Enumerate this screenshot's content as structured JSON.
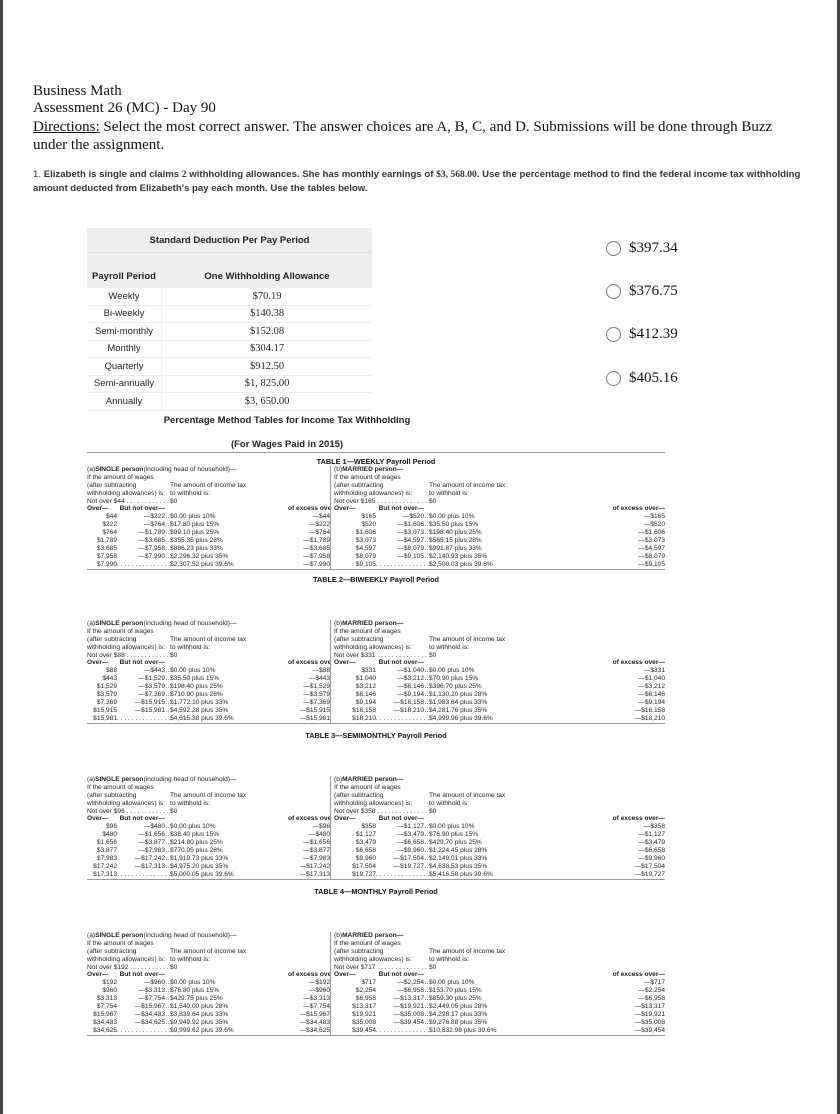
{
  "header": {
    "course": "Business Math",
    "assessment": "Assessment 26 (MC) - Day 90"
  },
  "directions": {
    "label": "Directions:",
    "text": " Select the most correct answer. The answer choices are A, B, C, and D. Submissions will be done through Buzz under the assignment."
  },
  "question": {
    "number": "1.",
    "text_a": "Elizabeth is single and claims ",
    "allowances": "2",
    "text_b": " withholding allowances. She has monthly earnings of ",
    "earnings": "$3, 568.00",
    "text_c": ". Use the percentage method to find the federal income tax withholding amount deducted from Elizabeth's pay each month. Use the tables below."
  },
  "choices": [
    "$397.34",
    "$376.75",
    "$412.39",
    "$405.16"
  ],
  "std_deduction": {
    "title": "Standard Deduction Per Pay Period",
    "col1": "Payroll Period",
    "col2": "One Withholding Allowance",
    "rows": [
      [
        "Weekly",
        "$70.19"
      ],
      [
        "Bi-weekly",
        "$140.38"
      ],
      [
        "Semi-monthly",
        "$152.08"
      ],
      [
        "Monthly",
        "$304.17"
      ],
      [
        "Quarterly",
        "$912.50"
      ],
      [
        "Semi-annually",
        "$1, 825.00"
      ],
      [
        "Annually",
        "$3, 650.00"
      ]
    ]
  },
  "pct_title": "Percentage Method Tables for Income Tax Withholding",
  "pct_subtitle": "(For Wages Paid in 2015)",
  "labels": {
    "single_prefix": "(a) ",
    "single_bold": "SINGLE person",
    "single_suffix": " (including head of household)—",
    "married_prefix": "(b) ",
    "married_bold": "MARRIED person—",
    "if_amount": "If the amount of wages",
    "after": "(after subtracting",
    "withholding": "withholding allowances) is:",
    "amount_tax": "The amount of income tax",
    "to_withhold": "to withhold is:",
    "zero": "$0",
    "over": "Over—",
    "but_not_over": "But not over—",
    "excess": "of excess over—"
  },
  "tables": [
    {
      "title": "TABLE 1—WEEKLY Payroll Period",
      "single": {
        "not_over": "Not over $44",
        "rows": [
          [
            "$44",
            "—$222",
            "$0.00 plus 10%",
            "—$44"
          ],
          [
            "$222",
            "—$764",
            "$17.80 plus 15%",
            "—$222"
          ],
          [
            "$764",
            "—$1,789",
            "$99.10 plus 25%",
            "—$764"
          ],
          [
            "$1,789",
            "—$3,685",
            "$355.35 plus 28%",
            "—$1,789"
          ],
          [
            "$3,685",
            "—$7,958",
            "$886.23 plus 33%",
            "—$3,685"
          ],
          [
            "$7,958",
            "—$7,990",
            "$2,296.32 plus 35%",
            "—$7,958"
          ],
          [
            "$7,990",
            "",
            "$2,307.52 plus 39.6%",
            "—$7,990"
          ]
        ]
      },
      "married": {
        "not_over": "Not over $165",
        "rows": [
          [
            "$165",
            "—$520",
            "$0.00 plus 10%",
            "—$165"
          ],
          [
            "$520",
            "—$1,606",
            "$35.50 plus 15%",
            "—$520"
          ],
          [
            "$1,606",
            "—$3,073",
            "$198.40 plus 25%",
            "—$1,606"
          ],
          [
            "$3,073",
            "—$4,597",
            "$565.15 plus 28%",
            "—$3,073"
          ],
          [
            "$4,597",
            "—$8,079",
            "$991.87 plus 33%",
            "—$4,597"
          ],
          [
            "$8,079",
            "—$9,105",
            "$2,140.93 plus 35%",
            "—$8,079"
          ],
          [
            "$9,105",
            "",
            "$2,500.03 plus 39.6%",
            "—$9,105"
          ]
        ]
      }
    },
    {
      "title": "TABLE 2—BIWEEKLY Payroll Period",
      "single": {
        "not_over": "Not over $88",
        "rows": [
          [
            "$88",
            "—$443",
            "$0.00 plus 10%",
            "—$88"
          ],
          [
            "$443",
            "—$1,529",
            "$35.50 plus 15%",
            "—$443"
          ],
          [
            "$1,529",
            "—$3,579",
            "$198.40 plus 25%",
            "—$1,529"
          ],
          [
            "$3,579",
            "—$7,369",
            "$710.90 plus 28%",
            "—$3,579"
          ],
          [
            "$7,369",
            "—$15,915",
            "$1,772.10 plus 33%",
            "—$7,369"
          ],
          [
            "$15,915",
            "—$15,981",
            "$4,592.28 plus 35%",
            "—$15,915"
          ],
          [
            "$15,981",
            "",
            "$4,615.38 plus 39.6%",
            "—$15,981"
          ]
        ]
      },
      "married": {
        "not_over": "Not over $331",
        "rows": [
          [
            "$331",
            "—$1,040",
            "$0.00 plus 10%",
            "—$331"
          ],
          [
            "$1,040",
            "—$3,212",
            "$70.90 plus 15%",
            "—$1,040"
          ],
          [
            "$3,212",
            "—$6,146",
            "$396.70 plus 25%",
            "—$3,212"
          ],
          [
            "$6,146",
            "—$9,194",
            "$1,130.20 plus 28%",
            "—$6,146"
          ],
          [
            "$9,194",
            "—$16,158",
            "$1,983.64 plus 33%",
            "—$9,194"
          ],
          [
            "$16,158",
            "—$18,210",
            "$4,281.76 plus 35%",
            "—$16,158"
          ],
          [
            "$18,210",
            "",
            "$4,999.96 plus 39.6%",
            "—$18,210"
          ]
        ]
      }
    },
    {
      "title": "TABLE 3—SEMIMONTHLY Payroll Period",
      "single": {
        "not_over": "Not over $96",
        "rows": [
          [
            "$96",
            "—$480",
            "$0.00 plus 10%",
            "—$96"
          ],
          [
            "$480",
            "—$1,656",
            "$38.40 plus 15%",
            "—$480"
          ],
          [
            "$1,656",
            "—$3,877",
            "$214.80 plus 25%",
            "—$1,656"
          ],
          [
            "$3,877",
            "—$7,983",
            "$770.05 plus 28%",
            "—$3,877"
          ],
          [
            "$7,983",
            "—$17,242",
            "$1,919.73 plus 33%",
            "—$7,983"
          ],
          [
            "$17,242",
            "—$17,313",
            "$4,975.20 plus 35%",
            "—$17,242"
          ],
          [
            "$17,313",
            "",
            "$5,000.05 plus 39.6%",
            "—$17,313"
          ]
        ]
      },
      "married": {
        "not_over": "Not over $358",
        "rows": [
          [
            "$358",
            "—$1,127",
            "$0.00 plus 10%",
            "—$358"
          ],
          [
            "$1,127",
            "—$3,479",
            "$76.90 plus 15%",
            "—$1,127"
          ],
          [
            "$3,479",
            "—$6,658",
            "$429.70 plus 25%",
            "—$3,479"
          ],
          [
            "$6,658",
            "—$9,960",
            "$1,224.45 plus 28%",
            "—$6,658"
          ],
          [
            "$9,960",
            "—$17,504",
            "$2,149.01 plus 33%",
            "—$9,960"
          ],
          [
            "$17,504",
            "—$19,727",
            "$4,638.53 plus 35%",
            "—$17,504"
          ],
          [
            "$19,727",
            "",
            "$5,416.58 plus 39.6%",
            "—$19,727"
          ]
        ]
      }
    },
    {
      "title": "TABLE 4—MONTHLY Payroll Period",
      "single": {
        "not_over": "Not over $192",
        "rows": [
          [
            "$192",
            "—$960",
            "$0.00 plus 10%",
            "—$192"
          ],
          [
            "$960",
            "—$3,313",
            "$76.80 plus 15%",
            "—$960"
          ],
          [
            "$3,313",
            "—$7,754",
            "$429.75 plus 25%",
            "—$3,313"
          ],
          [
            "$7,754",
            "—$15,967",
            "$1,540.00 plus 28%",
            "—$7,754"
          ],
          [
            "$15,967",
            "—$34,483",
            "$3,839.64 plus 33%",
            "—$15,967"
          ],
          [
            "$34,483",
            "—$34,625",
            "$9,949.92 plus 35%",
            "—$34,483"
          ],
          [
            "$34,625",
            "",
            "$9,999.62 plus 39.6%",
            "—$34,625"
          ]
        ]
      },
      "married": {
        "not_over": "Not over $717",
        "rows": [
          [
            "$717",
            "—$2,254",
            "$0.00 plus 10%",
            "—$717"
          ],
          [
            "$2,254",
            "—$6,958",
            "$153.70 plus 15%",
            "—$2,254"
          ],
          [
            "$6,958",
            "—$13,317",
            "$859.30 plus 25%",
            "—$6,958"
          ],
          [
            "$13,317",
            "—$19,921",
            "$2,449.05 plus 28%",
            "—$13,317"
          ],
          [
            "$19,921",
            "—$35,008",
            "$4,298.17 plus 33%",
            "—$19,921"
          ],
          [
            "$35,008",
            "—$39,454",
            "$9,276.88 plus 35%",
            "—$35,008"
          ],
          [
            "$39,454",
            "",
            "$10,832.98 plus 39.6%",
            "—$39,454"
          ]
        ]
      }
    }
  ]
}
